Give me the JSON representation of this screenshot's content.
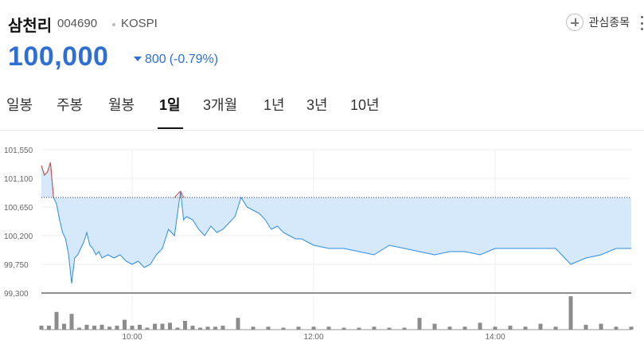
{
  "stock": {
    "name": "삼천리",
    "code": "004690",
    "market": "KOSPI",
    "price": "100,000",
    "change": "800",
    "change_rate": "(-0.79%)",
    "direction": "down"
  },
  "actions": {
    "watchlist_label": "관심종목"
  },
  "tabs": [
    {
      "label": "일봉",
      "active": false
    },
    {
      "label": "주봉",
      "active": false
    },
    {
      "label": "월봉",
      "active": false
    },
    {
      "label": "1일",
      "active": true
    },
    {
      "label": "3개월",
      "active": false
    },
    {
      "label": "1년",
      "active": false
    },
    {
      "label": "3년",
      "active": false
    },
    {
      "label": "10년",
      "active": false
    }
  ],
  "colors": {
    "accent_blue": "#2f6fd4",
    "line_blue": "#2d8be0",
    "fill_blue": "#d6e9fb",
    "up_red": "#e0443c",
    "volume_gray": "#8c8c8c"
  },
  "chart_data": {
    "type": "line",
    "x_ticks": [
      "10:00",
      "12:00",
      "14:00"
    ],
    "y_ticks": [
      101550,
      101100,
      100650,
      100200,
      99750,
      99300
    ],
    "ylim": [
      99300,
      101550
    ],
    "previous_close": 100800,
    "grid": true,
    "session": [
      "09:00",
      "15:30"
    ],
    "price_series": {
      "x": [
        "09:00",
        "09:02",
        "09:04",
        "09:06",
        "09:08",
        "09:10",
        "09:12",
        "09:14",
        "09:16",
        "09:18",
        "09:20",
        "09:22",
        "09:24",
        "09:26",
        "09:28",
        "09:30",
        "09:32",
        "09:34",
        "09:36",
        "09:38",
        "09:40",
        "09:44",
        "09:48",
        "09:52",
        "09:56",
        "10:00",
        "10:04",
        "10:08",
        "10:12",
        "10:16",
        "10:20",
        "10:24",
        "10:28",
        "10:32",
        "10:34",
        "10:36",
        "10:40",
        "10:44",
        "10:48",
        "10:52",
        "10:56",
        "11:00",
        "11:04",
        "11:08",
        "11:12",
        "11:16",
        "11:20",
        "11:24",
        "11:28",
        "11:32",
        "11:36",
        "11:40",
        "11:44",
        "11:48",
        "11:52",
        "11:56",
        "12:00",
        "12:10",
        "12:20",
        "12:30",
        "12:40",
        "12:50",
        "13:00",
        "13:10",
        "13:20",
        "13:30",
        "13:40",
        "13:50",
        "14:00",
        "14:10",
        "14:20",
        "14:30",
        "14:40",
        "14:50",
        "15:00",
        "15:10",
        "15:20",
        "15:30"
      ],
      "y": [
        101300,
        101150,
        101200,
        101350,
        100800,
        100700,
        100450,
        100250,
        100150,
        99900,
        99450,
        99850,
        99900,
        100000,
        100100,
        100250,
        100050,
        100000,
        99900,
        99950,
        99850,
        99900,
        99850,
        99900,
        99800,
        99750,
        99800,
        99700,
        99750,
        99900,
        100000,
        100300,
        100200,
        100900,
        100450,
        100500,
        100450,
        100300,
        100200,
        100350,
        100250,
        100300,
        100400,
        100500,
        100800,
        100650,
        100600,
        100550,
        100450,
        100300,
        100350,
        100250,
        100200,
        100150,
        100150,
        100100,
        100050,
        100000,
        100000,
        99950,
        99900,
        100050,
        100000,
        99950,
        99900,
        99950,
        99950,
        99900,
        100000,
        100000,
        100000,
        100000,
        100000,
        99750,
        99850,
        99900,
        100000,
        100000
      ]
    },
    "volume_series": {
      "x": [
        "09:00",
        "09:05",
        "09:10",
        "09:15",
        "09:20",
        "09:25",
        "09:30",
        "09:35",
        "09:40",
        "09:45",
        "09:50",
        "09:55",
        "10:00",
        "10:05",
        "10:10",
        "10:15",
        "10:20",
        "10:25",
        "10:30",
        "10:35",
        "10:40",
        "10:45",
        "10:50",
        "10:55",
        "11:00",
        "11:10",
        "11:20",
        "11:30",
        "11:40",
        "11:50",
        "12:00",
        "12:10",
        "12:20",
        "12:30",
        "12:40",
        "12:50",
        "13:00",
        "13:10",
        "13:20",
        "13:30",
        "13:40",
        "13:50",
        "14:00",
        "14:10",
        "14:20",
        "14:30",
        "14:40",
        "14:50",
        "15:00",
        "15:10",
        "15:20",
        "15:30"
      ],
      "values": [
        4,
        4,
        18,
        6,
        16,
        2,
        5,
        4,
        5,
        3,
        4,
        10,
        4,
        5,
        2,
        6,
        6,
        7,
        2,
        9,
        4,
        2,
        3,
        3,
        4,
        12,
        3,
        3,
        2,
        3,
        3,
        3,
        2,
        2,
        3,
        2,
        2,
        12,
        6,
        3,
        3,
        7,
        3,
        4,
        3,
        6,
        3,
        34,
        5,
        6,
        3,
        3
      ]
    }
  }
}
